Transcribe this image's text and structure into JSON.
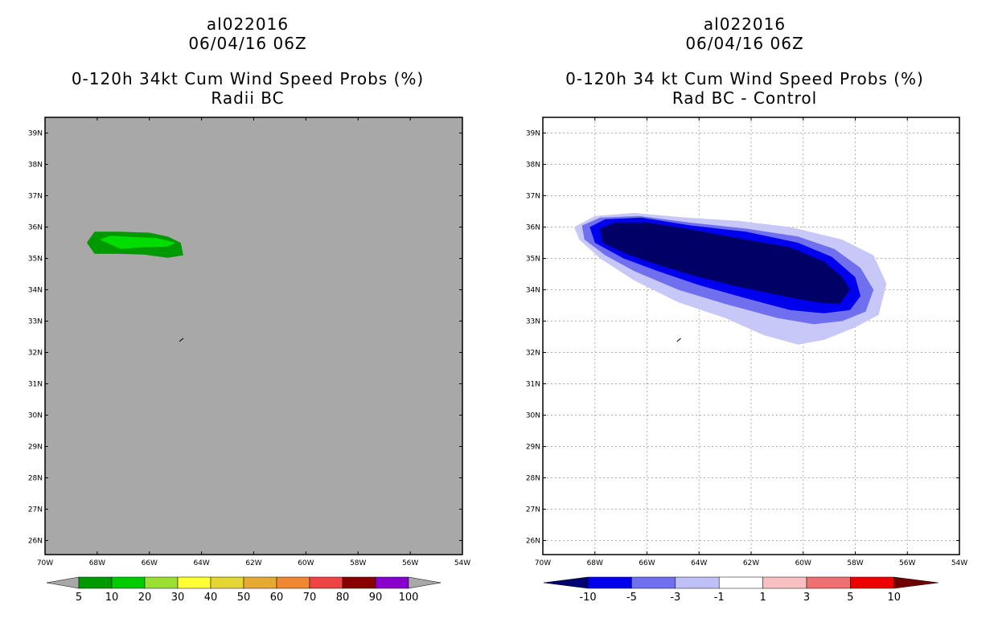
{
  "chart_data": [
    {
      "type": "heatmap",
      "panel": "left",
      "title_lines": [
        "al022016",
        "06/04/16 06Z"
      ],
      "subtitle_lines": [
        "0-120h 34kt Cum Wind Speed Probs (%)",
        "Radii BC"
      ],
      "x_ticks": [
        "70W",
        "68W",
        "66W",
        "64W",
        "62W",
        "60W",
        "58W",
        "56W",
        "54W"
      ],
      "y_ticks": [
        "39N",
        "38N",
        "37N",
        "36N",
        "35N",
        "34N",
        "33N",
        "32N",
        "31N",
        "30N",
        "29N",
        "28N",
        "27N",
        "26N"
      ],
      "xlim": [
        -70,
        -54
      ],
      "ylim": [
        25.6,
        39.5
      ],
      "background_color": "#a8a8a8",
      "grid": false,
      "colorbar": {
        "labels": [
          "5",
          "10",
          "20",
          "30",
          "40",
          "50",
          "60",
          "70",
          "80",
          "90",
          "100"
        ],
        "colors": [
          "#009900",
          "#00cc00",
          "#99e033",
          "#ffff33",
          "#e6d633",
          "#e6aa33",
          "#ee8833",
          "#ee4444",
          "#880000",
          "#8800cc"
        ],
        "under_color": "#a8a8a8",
        "over_color": "#a8a8a8"
      },
      "contours": [
        {
          "level": "5-10",
          "color": "#009900",
          "points": [
            [
              -68.4,
              35.5
            ],
            [
              -68.1,
              35.85
            ],
            [
              -67.2,
              35.85
            ],
            [
              -66.0,
              35.82
            ],
            [
              -65.3,
              35.7
            ],
            [
              -64.8,
              35.5
            ],
            [
              -64.7,
              35.1
            ],
            [
              -65.3,
              35.02
            ],
            [
              -66.2,
              35.12
            ],
            [
              -67.2,
              35.15
            ],
            [
              -68.1,
              35.15
            ],
            [
              -68.4,
              35.5
            ]
          ]
        },
        {
          "level": "10-20",
          "color": "#00dd00",
          "points": [
            [
              -67.9,
              35.6
            ],
            [
              -67.5,
              35.72
            ],
            [
              -66.5,
              35.68
            ],
            [
              -65.7,
              35.65
            ],
            [
              -65.0,
              35.5
            ],
            [
              -65.3,
              35.38
            ],
            [
              -66.3,
              35.35
            ],
            [
              -67.1,
              35.3
            ],
            [
              -67.9,
              35.6
            ]
          ]
        }
      ],
      "track_segment": [
        [
          -64.85,
          32.35
        ],
        [
          -64.7,
          32.45
        ]
      ]
    },
    {
      "type": "heatmap",
      "panel": "right",
      "title_lines": [
        "al022016",
        "06/04/16 06Z"
      ],
      "subtitle_lines": [
        "0-120h 34 kt Cum Wind Speed Probs (%)",
        "Rad BC - Control"
      ],
      "x_ticks": [
        "70W",
        "68W",
        "66W",
        "64W",
        "62W",
        "60W",
        "58W",
        "56W",
        "54W"
      ],
      "y_ticks": [
        "39N",
        "38N",
        "37N",
        "36N",
        "35N",
        "34N",
        "33N",
        "32N",
        "31N",
        "30N",
        "29N",
        "28N",
        "27N",
        "26N"
      ],
      "xlim": [
        -70,
        -54
      ],
      "ylim": [
        25.6,
        39.5
      ],
      "background_color": "#ffffff",
      "grid": true,
      "colorbar": {
        "labels": [
          "-10",
          "-5",
          "-3",
          "-1",
          "1",
          "3",
          "5",
          "10"
        ],
        "colors": [
          "#0000ee",
          "#7070ee",
          "#c0c0f8",
          "#ffffff",
          "#f8c0c0",
          "#ee7070",
          "#ee0000"
        ],
        "under_color": "#000070",
        "over_color": "#700000"
      },
      "contours": [
        {
          "level": "-3 to -1",
          "color": "#c8c8f8",
          "points": [
            [
              -68.8,
              36.0
            ],
            [
              -68.0,
              36.35
            ],
            [
              -66.5,
              36.45
            ],
            [
              -64.5,
              36.3
            ],
            [
              -62.5,
              36.2
            ],
            [
              -60.5,
              36.0
            ],
            [
              -58.5,
              35.6
            ],
            [
              -57.3,
              35.1
            ],
            [
              -56.8,
              34.2
            ],
            [
              -57.1,
              33.2
            ],
            [
              -58.0,
              32.8
            ],
            [
              -59.2,
              32.4
            ],
            [
              -60.2,
              32.25
            ],
            [
              -61.5,
              32.55
            ],
            [
              -63.0,
              33.1
            ],
            [
              -64.8,
              33.6
            ],
            [
              -66.5,
              34.3
            ],
            [
              -67.8,
              35.0
            ],
            [
              -68.6,
              35.6
            ],
            [
              -68.8,
              36.0
            ]
          ]
        },
        {
          "level": "-5 to -3",
          "color": "#7070ee",
          "points": [
            [
              -68.5,
              36.05
            ],
            [
              -67.8,
              36.3
            ],
            [
              -66.3,
              36.35
            ],
            [
              -64.4,
              36.15
            ],
            [
              -62.2,
              35.95
            ],
            [
              -60.2,
              35.7
            ],
            [
              -58.8,
              35.3
            ],
            [
              -57.8,
              34.7
            ],
            [
              -57.3,
              34.0
            ],
            [
              -57.6,
              33.3
            ],
            [
              -58.5,
              33.0
            ],
            [
              -59.6,
              32.9
            ],
            [
              -61.0,
              33.1
            ],
            [
              -63.0,
              33.55
            ],
            [
              -64.8,
              34.0
            ],
            [
              -66.5,
              34.6
            ],
            [
              -67.6,
              35.1
            ],
            [
              -68.4,
              35.6
            ],
            [
              -68.5,
              36.05
            ]
          ]
        },
        {
          "level": "-10 to -5",
          "color": "#0000ee",
          "points": [
            [
              -68.2,
              36.0
            ],
            [
              -67.6,
              36.25
            ],
            [
              -66.2,
              36.3
            ],
            [
              -64.3,
              36.05
            ],
            [
              -62.2,
              35.85
            ],
            [
              -60.2,
              35.5
            ],
            [
              -58.9,
              35.05
            ],
            [
              -58.0,
              34.4
            ],
            [
              -57.8,
              33.8
            ],
            [
              -58.2,
              33.35
            ],
            [
              -59.2,
              33.25
            ],
            [
              -60.5,
              33.35
            ],
            [
              -62.3,
              33.75
            ],
            [
              -64.0,
              34.15
            ],
            [
              -65.6,
              34.6
            ],
            [
              -66.9,
              35.0
            ],
            [
              -68.0,
              35.5
            ],
            [
              -68.2,
              36.0
            ]
          ]
        },
        {
          "level": "< -10",
          "color": "#000066",
          "points": [
            [
              -67.8,
              35.95
            ],
            [
              -67.2,
              36.15
            ],
            [
              -66.0,
              36.15
            ],
            [
              -64.5,
              35.95
            ],
            [
              -62.5,
              35.65
            ],
            [
              -60.5,
              35.35
            ],
            [
              -59.2,
              34.9
            ],
            [
              -58.5,
              34.4
            ],
            [
              -58.2,
              34.0
            ],
            [
              -58.6,
              33.55
            ],
            [
              -59.5,
              33.6
            ],
            [
              -60.8,
              33.8
            ],
            [
              -62.5,
              34.1
            ],
            [
              -64.2,
              34.45
            ],
            [
              -65.6,
              34.8
            ],
            [
              -66.8,
              35.15
            ],
            [
              -67.7,
              35.5
            ],
            [
              -67.8,
              35.95
            ]
          ]
        }
      ],
      "track_segment": [
        [
          -64.85,
          32.35
        ],
        [
          -64.7,
          32.45
        ]
      ]
    }
  ]
}
